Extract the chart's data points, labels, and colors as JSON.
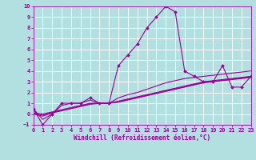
{
  "xlabel": "Windchill (Refroidissement éolien,°C)",
  "bg_color": "#b2e0e0",
  "grid_color": "#ffffff",
  "line_color": "#990099",
  "xmin": 0,
  "xmax": 23,
  "ymin": -1,
  "ymax": 10,
  "series": [
    [
      0.5,
      -1.0,
      0.0,
      1.0,
      1.0,
      1.0,
      1.5,
      1.0,
      1.0,
      4.5,
      5.5,
      6.5,
      8.0,
      9.0,
      10.0,
      9.5,
      4.0,
      3.5,
      3.0,
      3.0,
      4.5,
      2.5,
      2.5,
      3.5
    ],
    [
      0.5,
      -0.5,
      0.0,
      0.8,
      1.0,
      1.0,
      1.3,
      1.0,
      1.0,
      1.5,
      1.8,
      2.0,
      2.3,
      2.6,
      2.9,
      3.1,
      3.3,
      3.4,
      3.5,
      3.6,
      3.7,
      3.8,
      3.9,
      4.0
    ],
    [
      0.1,
      0.0,
      0.2,
      0.4,
      0.6,
      0.8,
      1.0,
      1.0,
      1.0,
      1.2,
      1.4,
      1.6,
      1.8,
      2.0,
      2.2,
      2.4,
      2.6,
      2.8,
      3.0,
      3.1,
      3.2,
      3.3,
      3.4,
      3.5
    ],
    [
      0.05,
      -0.1,
      0.15,
      0.35,
      0.55,
      0.75,
      0.95,
      1.0,
      1.0,
      1.15,
      1.35,
      1.55,
      1.75,
      1.95,
      2.15,
      2.35,
      2.55,
      2.75,
      2.95,
      3.05,
      3.15,
      3.25,
      3.35,
      3.45
    ],
    [
      0.0,
      -0.2,
      0.1,
      0.3,
      0.5,
      0.7,
      0.9,
      1.0,
      1.0,
      1.1,
      1.3,
      1.5,
      1.7,
      1.9,
      2.1,
      2.3,
      2.5,
      2.7,
      2.9,
      3.0,
      3.1,
      3.2,
      3.3,
      3.4
    ]
  ],
  "yticks": [
    -1,
    0,
    1,
    2,
    3,
    4,
    5,
    6,
    7,
    8,
    9,
    10
  ],
  "xticks": [
    0,
    1,
    2,
    3,
    4,
    5,
    6,
    7,
    8,
    9,
    10,
    11,
    12,
    13,
    14,
    15,
    16,
    17,
    18,
    19,
    20,
    21,
    22,
    23
  ],
  "tick_fontsize": 5.0,
  "xlabel_fontsize": 5.5,
  "linewidth": 0.8,
  "markersize": 2.0
}
